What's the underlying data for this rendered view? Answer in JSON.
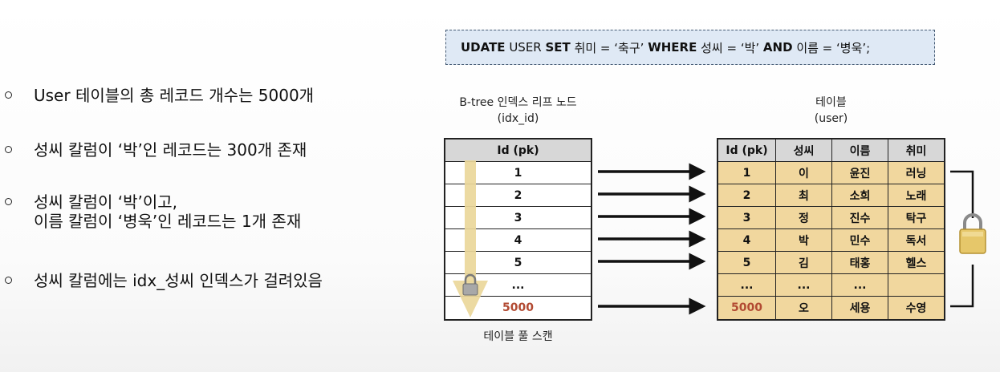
{
  "bullets": [
    {
      "lines": [
        "User 테이블의 총 레코드 개수는 5000개"
      ]
    },
    {
      "lines": [
        "성씨 칼럼이 ‘박’인 레코드는 300개 존재"
      ]
    },
    {
      "lines": [
        "성씨 칼럼이 ‘박’이고,",
        "이름 칼럼이 ‘병욱’인 레코드는 1개 존재"
      ]
    },
    {
      "lines": [
        "성씨 칼럼에는 idx_성씨 인덱스가 걸려있음"
      ]
    }
  ],
  "query": {
    "k1": "UDATE",
    "t1": " USER ",
    "k2": "SET",
    "t2": " 취미 = ‘축구’ ",
    "k3": "WHERE",
    "t3": " 성씨 = ‘박’ ",
    "k4": "AND",
    "t4": " 이름 = ‘병욱’;"
  },
  "index_caption": {
    "line1": "B-tree 인덱스 리프 노드",
    "line2": "(idx_id)"
  },
  "table_caption": {
    "line1": "테이블",
    "line2": "(user)"
  },
  "index_table": {
    "header": "Id (pk)",
    "rows": [
      "1",
      "2",
      "3",
      "4",
      "5",
      "...",
      "5000"
    ]
  },
  "user_table": {
    "headers": [
      "Id (pk)",
      "성씨",
      "이름",
      "취미"
    ],
    "rows": [
      [
        "1",
        "이",
        "윤진",
        "러닝"
      ],
      [
        "2",
        "최",
        "소희",
        "노래"
      ],
      [
        "3",
        "정",
        "진수",
        "탁구"
      ],
      [
        "4",
        "박",
        "민수",
        "독서"
      ],
      [
        "5",
        "김",
        "태홍",
        "헬스"
      ],
      [
        "...",
        "...",
        "...",
        ""
      ],
      [
        "5000",
        "오",
        "세용",
        "수영"
      ]
    ]
  },
  "scan_label": "테이블 풀 스캔",
  "colors": {
    "scan_arrow": "#ead79a",
    "table_fill": "#f1d79e",
    "header_fill": "#d7d7d7",
    "highlight_text": "#b24a32",
    "query_fill": "#dfe9f5"
  },
  "icons": {
    "lock": "padlock-icon"
  }
}
